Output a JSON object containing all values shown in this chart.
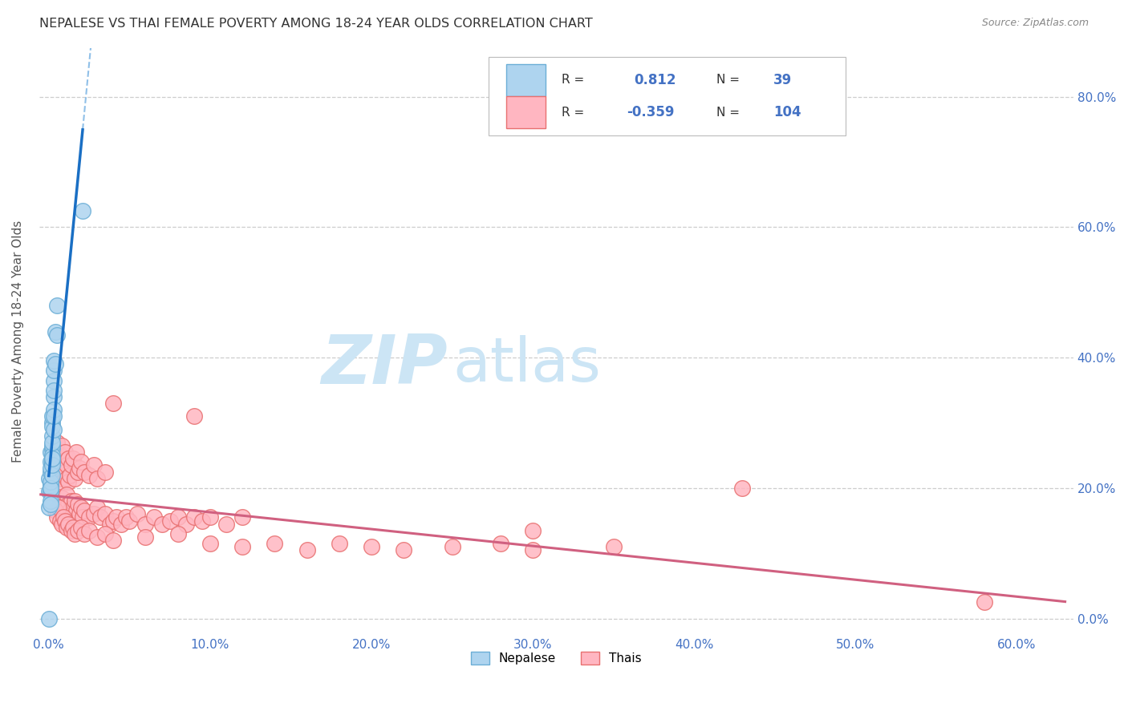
{
  "title": "NEPALESE VS THAI FEMALE POVERTY AMONG 18-24 YEAR OLDS CORRELATION CHART",
  "source": "Source: ZipAtlas.com",
  "xlabel_tick_vals": [
    0.0,
    0.1,
    0.2,
    0.3,
    0.4,
    0.5,
    0.6
  ],
  "ylabel_tick_vals": [
    0.0,
    0.2,
    0.4,
    0.6,
    0.8
  ],
  "xlim": [
    -0.006,
    0.635
  ],
  "ylim": [
    -0.025,
    0.875
  ],
  "ylabel": "Female Poverty Among 18-24 Year Olds",
  "nepalese_edge": "#6baed6",
  "nepalese_face": "#aed4ef",
  "thai_edge": "#e87070",
  "thai_face": "#ffb6c1",
  "blue_line_color": "#1a6fc4",
  "pink_line_color": "#d06080",
  "R_nepalese": 0.812,
  "N_nepalese": 39,
  "R_thai": -0.359,
  "N_thai": 104,
  "nepalese_scatter": [
    [
      0.0,
      0.17
    ],
    [
      0.0,
      0.215
    ],
    [
      0.0,
      0.195
    ],
    [
      0.001,
      0.225
    ],
    [
      0.001,
      0.205
    ],
    [
      0.001,
      0.24
    ],
    [
      0.001,
      0.195
    ],
    [
      0.001,
      0.18
    ],
    [
      0.001,
      0.21
    ],
    [
      0.001,
      0.255
    ],
    [
      0.001,
      0.23
    ],
    [
      0.001,
      0.175
    ],
    [
      0.001,
      0.2
    ],
    [
      0.002,
      0.26
    ],
    [
      0.002,
      0.24
    ],
    [
      0.002,
      0.22
    ],
    [
      0.002,
      0.265
    ],
    [
      0.002,
      0.25
    ],
    [
      0.002,
      0.235
    ],
    [
      0.002,
      0.245
    ],
    [
      0.002,
      0.28
    ],
    [
      0.002,
      0.3
    ],
    [
      0.002,
      0.295
    ],
    [
      0.002,
      0.27
    ],
    [
      0.002,
      0.31
    ],
    [
      0.003,
      0.365
    ],
    [
      0.003,
      0.34
    ],
    [
      0.003,
      0.29
    ],
    [
      0.003,
      0.38
    ],
    [
      0.003,
      0.32
    ],
    [
      0.003,
      0.31
    ],
    [
      0.003,
      0.35
    ],
    [
      0.003,
      0.395
    ],
    [
      0.004,
      0.44
    ],
    [
      0.004,
      0.39
    ],
    [
      0.005,
      0.48
    ],
    [
      0.005,
      0.435
    ],
    [
      0.021,
      0.625
    ],
    [
      0.0,
      0.0
    ]
  ],
  "thai_scatter": [
    [
      0.003,
      0.25
    ],
    [
      0.004,
      0.225
    ],
    [
      0.005,
      0.27
    ],
    [
      0.006,
      0.245
    ],
    [
      0.007,
      0.215
    ],
    [
      0.007,
      0.25
    ],
    [
      0.008,
      0.23
    ],
    [
      0.008,
      0.265
    ],
    [
      0.008,
      0.21
    ],
    [
      0.009,
      0.24
    ],
    [
      0.01,
      0.225
    ],
    [
      0.01,
      0.255
    ],
    [
      0.011,
      0.235
    ],
    [
      0.011,
      0.215
    ],
    [
      0.012,
      0.245
    ],
    [
      0.012,
      0.21
    ],
    [
      0.013,
      0.22
    ],
    [
      0.014,
      0.235
    ],
    [
      0.015,
      0.245
    ],
    [
      0.016,
      0.215
    ],
    [
      0.017,
      0.255
    ],
    [
      0.018,
      0.225
    ],
    [
      0.019,
      0.23
    ],
    [
      0.02,
      0.24
    ],
    [
      0.022,
      0.225
    ],
    [
      0.025,
      0.22
    ],
    [
      0.028,
      0.235
    ],
    [
      0.03,
      0.215
    ],
    [
      0.035,
      0.225
    ],
    [
      0.04,
      0.33
    ],
    [
      0.008,
      0.185
    ],
    [
      0.009,
      0.165
    ],
    [
      0.01,
      0.175
    ],
    [
      0.011,
      0.19
    ],
    [
      0.012,
      0.175
    ],
    [
      0.013,
      0.165
    ],
    [
      0.014,
      0.18
    ],
    [
      0.015,
      0.17
    ],
    [
      0.016,
      0.18
    ],
    [
      0.017,
      0.165
    ],
    [
      0.018,
      0.175
    ],
    [
      0.019,
      0.16
    ],
    [
      0.02,
      0.17
    ],
    [
      0.021,
      0.155
    ],
    [
      0.022,
      0.165
    ],
    [
      0.025,
      0.155
    ],
    [
      0.028,
      0.16
    ],
    [
      0.03,
      0.17
    ],
    [
      0.032,
      0.155
    ],
    [
      0.035,
      0.16
    ],
    [
      0.038,
      0.145
    ],
    [
      0.04,
      0.15
    ],
    [
      0.042,
      0.155
    ],
    [
      0.045,
      0.145
    ],
    [
      0.048,
      0.155
    ],
    [
      0.05,
      0.15
    ],
    [
      0.055,
      0.16
    ],
    [
      0.06,
      0.145
    ],
    [
      0.065,
      0.155
    ],
    [
      0.07,
      0.145
    ],
    [
      0.075,
      0.15
    ],
    [
      0.08,
      0.155
    ],
    [
      0.085,
      0.145
    ],
    [
      0.09,
      0.155
    ],
    [
      0.095,
      0.15
    ],
    [
      0.1,
      0.155
    ],
    [
      0.11,
      0.145
    ],
    [
      0.12,
      0.155
    ],
    [
      0.004,
      0.165
    ],
    [
      0.005,
      0.155
    ],
    [
      0.006,
      0.17
    ],
    [
      0.007,
      0.15
    ],
    [
      0.008,
      0.145
    ],
    [
      0.009,
      0.155
    ],
    [
      0.01,
      0.15
    ],
    [
      0.011,
      0.14
    ],
    [
      0.012,
      0.145
    ],
    [
      0.014,
      0.135
    ],
    [
      0.015,
      0.14
    ],
    [
      0.016,
      0.13
    ],
    [
      0.018,
      0.135
    ],
    [
      0.02,
      0.14
    ],
    [
      0.022,
      0.13
    ],
    [
      0.025,
      0.135
    ],
    [
      0.03,
      0.125
    ],
    [
      0.035,
      0.13
    ],
    [
      0.04,
      0.12
    ],
    [
      0.06,
      0.125
    ],
    [
      0.08,
      0.13
    ],
    [
      0.1,
      0.115
    ],
    [
      0.12,
      0.11
    ],
    [
      0.14,
      0.115
    ],
    [
      0.16,
      0.105
    ],
    [
      0.18,
      0.115
    ],
    [
      0.2,
      0.11
    ],
    [
      0.22,
      0.105
    ],
    [
      0.25,
      0.11
    ],
    [
      0.28,
      0.115
    ],
    [
      0.3,
      0.105
    ],
    [
      0.35,
      0.11
    ],
    [
      0.09,
      0.31
    ],
    [
      0.3,
      0.135
    ],
    [
      0.43,
      0.2
    ],
    [
      0.58,
      0.025
    ]
  ],
  "watermark_zip": "ZIP",
  "watermark_atlas": "atlas",
  "watermark_color": "#cce5f5",
  "grid_color": "#c8c8c8",
  "bg_color": "#ffffff",
  "tick_color": "#4472c4"
}
